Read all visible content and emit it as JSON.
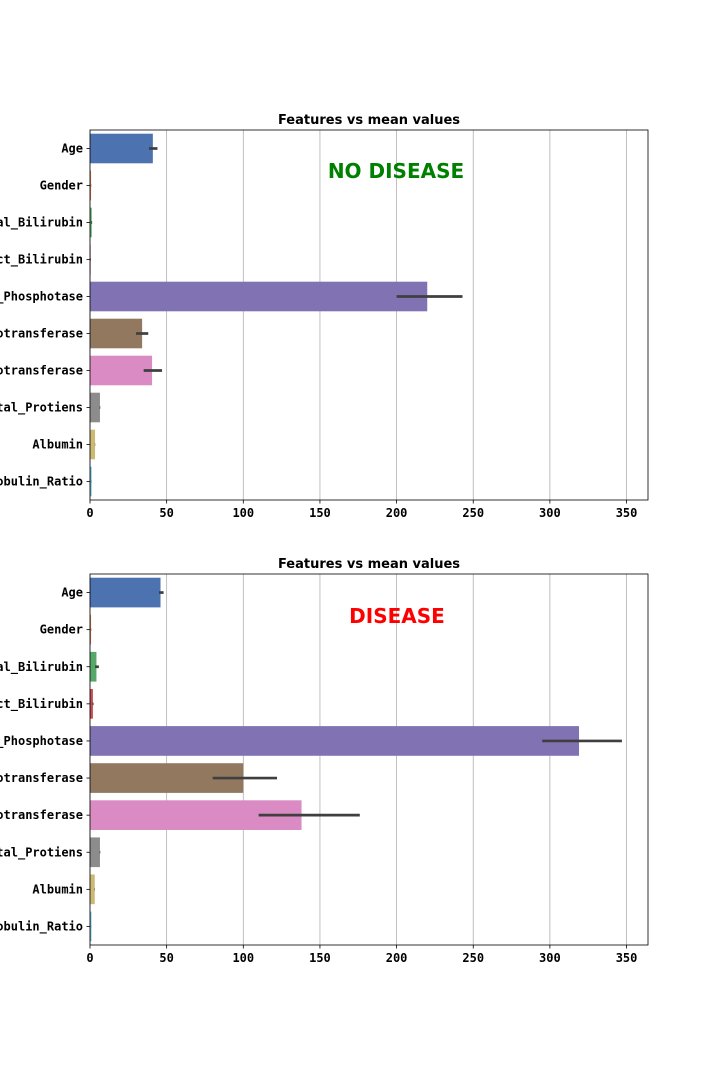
{
  "chart_data": [
    {
      "type": "bar",
      "orientation": "horizontal",
      "title": "Features vs mean values",
      "annotation": "NO DISEASE",
      "annotation_color": "#008000",
      "categories": [
        "Age",
        "Gender",
        "Total_Bilirubin",
        "Direct_Bilirubin",
        "Alkaline_Phosphotase",
        "Alamine_Aminotransferase",
        "Aspartate_Aminotransferase",
        "Total_Protiens",
        "Albumin",
        "Albumin_and_Globulin_Ratio"
      ],
      "tick_labels": [
        "Age",
        "Gender",
        "al_Bilirubin",
        "ct_Bilirubin",
        "_Phosphotase",
        "otransferase",
        "otransferase",
        "tal_Protiens",
        "Albumin",
        "obulin_Ratio"
      ],
      "values": [
        41,
        0.7,
        1.1,
        0.4,
        220,
        34,
        40.5,
        6.5,
        3.3,
        1.0
      ],
      "error_low": [
        38.5,
        0.6,
        0.8,
        0.3,
        200,
        30,
        35,
        6.3,
        3.2,
        0.95
      ],
      "error_high": [
        44,
        0.8,
        1.4,
        0.5,
        243,
        38,
        47,
        6.7,
        3.4,
        1.05
      ],
      "xlim": [
        0,
        364
      ],
      "xticks": [
        0,
        50,
        100,
        150,
        200,
        250,
        300,
        350
      ],
      "grid": "x",
      "colors": [
        "#4c72b0",
        "#dd8452",
        "#55a868",
        "#c44e52",
        "#8172b3",
        "#937860",
        "#da8bc3",
        "#8c8c8c",
        "#ccb974",
        "#64b5cd"
      ]
    },
    {
      "type": "bar",
      "orientation": "horizontal",
      "title": "Features vs mean values",
      "annotation": "DISEASE",
      "annotation_color": "#ff0000",
      "categories": [
        "Age",
        "Gender",
        "Total_Bilirubin",
        "Direct_Bilirubin",
        "Alkaline_Phosphotase",
        "Alamine_Aminotransferase",
        "Aspartate_Aminotransferase",
        "Total_Protiens",
        "Albumin",
        "Albumin_and_Globulin_Ratio"
      ],
      "tick_labels": [
        "Age",
        "Gender",
        "al_Bilirubin",
        "ct_Bilirubin",
        "_Phosphotase",
        "otransferase",
        "otransferase",
        "tal_Protiens",
        "Albumin",
        "obulin_Ratio"
      ],
      "values": [
        46,
        0.7,
        4.2,
        1.9,
        319,
        100,
        138,
        6.5,
        3.1,
        0.9
      ],
      "error_low": [
        45,
        0.6,
        3.3,
        1.6,
        295,
        80,
        110,
        6.3,
        3.0,
        0.85
      ],
      "error_high": [
        48,
        0.8,
        5.8,
        2.3,
        347,
        122,
        176,
        6.7,
        3.2,
        0.95
      ],
      "xlim": [
        0,
        364
      ],
      "xticks": [
        0,
        50,
        100,
        150,
        200,
        250,
        300,
        350
      ],
      "grid": "x",
      "colors": [
        "#4c72b0",
        "#dd8452",
        "#55a868",
        "#c44e52",
        "#8172b3",
        "#937860",
        "#da8bc3",
        "#8c8c8c",
        "#ccb974",
        "#64b5cd"
      ]
    }
  ]
}
